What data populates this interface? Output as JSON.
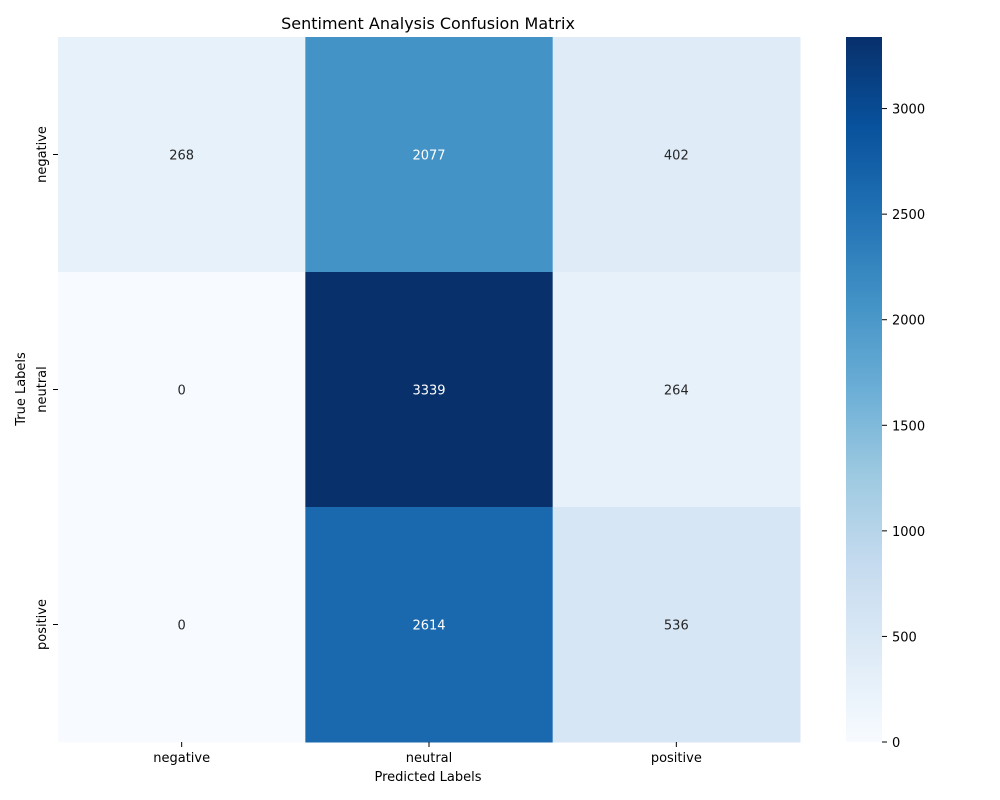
{
  "chart_data": {
    "type": "heatmap",
    "title": "Sentiment Analysis Confusion Matrix",
    "xlabel": "Predicted Labels",
    "ylabel": "True Labels",
    "x_categories": [
      "negative",
      "neutral",
      "positive"
    ],
    "y_categories": [
      "negative",
      "neutral",
      "positive"
    ],
    "values": [
      [
        268,
        2077,
        402
      ],
      [
        0,
        3339,
        264
      ],
      [
        0,
        2614,
        536
      ]
    ],
    "colormap": "Blues",
    "colorbar": {
      "min": 0,
      "max": 3339,
      "ticks": [
        0,
        500,
        1000,
        1500,
        2000,
        2500,
        3000
      ]
    }
  }
}
